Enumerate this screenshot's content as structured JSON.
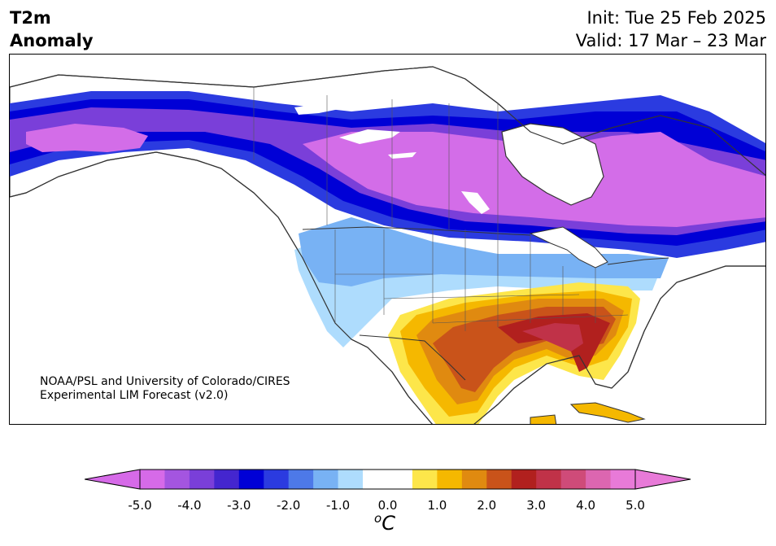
{
  "header": {
    "title_line1": "T2m",
    "title_line2": "Anomaly",
    "init": "Init: Tue 25 Feb 2025",
    "valid": "Valid: 17 Mar – 23 Mar"
  },
  "credit": {
    "line1": "NOAA/PSL and University of Colorado/CIRES",
    "line2": "Experimental LIM Forecast (v2.0)"
  },
  "colorbar": {
    "unit_sup": "o",
    "unit_main": "C",
    "ticks": [
      "-5.0",
      "-4.0",
      "-3.0",
      "-2.0",
      "-1.0",
      "0.0",
      "1.0",
      "2.0",
      "3.0",
      "4.0",
      "5.0"
    ],
    "colors": [
      "#d66ae8",
      "#a455e0",
      "#7a3fd9",
      "#4426cf",
      "#0000d6",
      "#2b3be0",
      "#4d79e8",
      "#78b2f4",
      "#aedcfd",
      "#ffffff",
      "#ffffff",
      "#fde64a",
      "#f5b800",
      "#e08a10",
      "#c9531a",
      "#b1201e",
      "#c03248",
      "#cf4b79",
      "#dc66b0",
      "#e87ad8"
    ],
    "under_color": "#d66ae8",
    "over_color": "#e87ad8"
  },
  "map": {
    "colors": {
      "land_neutral": "#ffffff",
      "border": "#333333",
      "magenta_cold": "#d36de8",
      "violet": "#7a3fd9",
      "deep_blue": "#0000d6",
      "mid_blue": "#2b3be0",
      "light_blue": "#78b2f4",
      "pale_blue": "#aedcfd",
      "yellow": "#fde64a",
      "gold": "#f5b800",
      "orange": "#e08a10",
      "rust": "#c9531a",
      "red": "#b1201e",
      "crimson": "#c03248"
    }
  }
}
